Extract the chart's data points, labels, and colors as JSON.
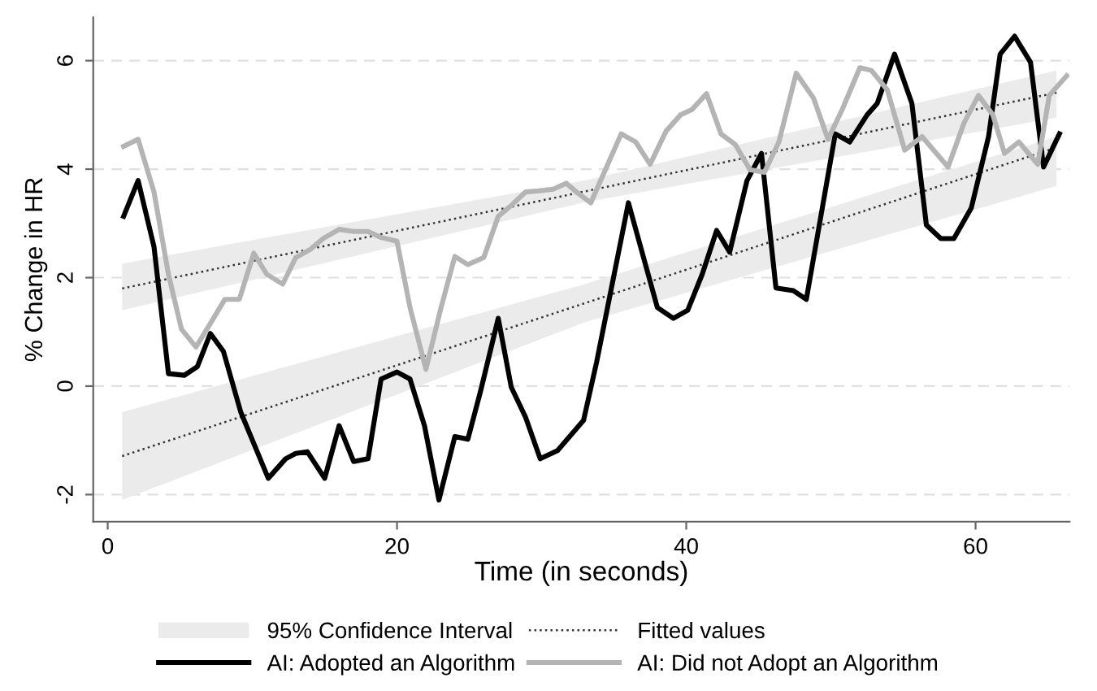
{
  "chart_data": {
    "type": "line",
    "xlabel": "Time (in seconds)",
    "ylabel": "% Change in HR",
    "xlim": [
      -1,
      66.5
    ],
    "ylim": [
      -2.5,
      6.8
    ],
    "xticks": [
      0,
      20,
      40,
      60
    ],
    "yticks": [
      -2,
      0,
      2,
      4,
      6
    ],
    "grid": "y",
    "legend": "bottom",
    "annotations": [
      "95% Confidence Interval"
    ],
    "series": [
      {
        "name": "Fitted values",
        "line_style": "dotted",
        "color": "#333333",
        "x": [
          1,
          33,
          65.6
        ],
        "values": [
          -1.29,
          1.53,
          4.4
        ],
        "lower": [
          -2.1,
          1.18,
          3.69
        ],
        "upper": [
          -0.48,
          1.88,
          4.6
        ]
      },
      {
        "line_style": "dotted",
        "color": "#333333",
        "x": [
          1,
          33,
          65.6
        ],
        "values": [
          1.8,
          3.59,
          5.41
        ],
        "lower": [
          1.4,
          3.39,
          4.95
        ],
        "upper": [
          2.26,
          3.79,
          5.82
        ]
      },
      {
        "name": "AI: Adopted an Algorithm",
        "color": "#000000",
        "x": [
          1.1,
          2.1,
          3.2,
          4.2,
          5.3,
          6.2,
          7.1,
          8.0,
          9.2,
          11.1,
          12.3,
          13.0,
          13.8,
          15.0,
          16.0,
          17.0,
          18.0,
          18.9,
          20.0,
          20.9,
          21.9,
          22.9,
          24.0,
          24.9,
          25.8,
          27.0,
          27.9,
          28.9,
          29.9,
          31.1,
          32.9,
          33.8,
          36.0,
          38.0,
          39.1,
          40.1,
          41.1,
          42.1,
          43.0,
          44.2,
          45.2,
          46.2,
          47.4,
          48.3,
          50.3,
          51.3,
          52.5,
          53.2,
          54.4,
          55.6,
          56.6,
          57.6,
          58.5,
          59.7,
          60.9,
          61.7,
          62.7,
          63.8,
          64.7,
          65.8
        ],
        "values": [
          3.13,
          3.79,
          2.57,
          0.23,
          0.2,
          0.36,
          0.97,
          0.64,
          -0.48,
          -1.7,
          -1.34,
          -1.24,
          -1.21,
          -1.7,
          -0.73,
          -1.39,
          -1.34,
          0.13,
          0.26,
          0.13,
          -0.73,
          -2.1,
          -0.93,
          -0.98,
          -0.07,
          1.25,
          -0.02,
          -0.58,
          -1.34,
          -1.19,
          -0.63,
          0.44,
          3.38,
          1.45,
          1.25,
          1.4,
          2.06,
          2.87,
          2.47,
          3.79,
          4.29,
          1.81,
          1.76,
          1.6,
          4.65,
          4.5,
          5.0,
          5.21,
          6.12,
          5.21,
          2.97,
          2.72,
          2.72,
          3.28,
          4.6,
          6.12,
          6.45,
          5.97,
          4.04,
          4.65
        ]
      },
      {
        "name": "AI: Did not Adopt an Algorithm",
        "color": "#b4b4b4",
        "x": [
          1.1,
          2.1,
          3.2,
          4.2,
          5.1,
          6.1,
          7.2,
          8.1,
          9.1,
          10.1,
          11.0,
          12.1,
          13.0,
          14.0,
          14.9,
          16.0,
          17.0,
          18.0,
          18.9,
          20.0,
          20.9,
          22.0,
          23.0,
          24.0,
          24.9,
          26.0,
          27.0,
          27.9,
          28.9,
          29.8,
          30.8,
          31.7,
          32.4,
          33.4,
          35.5,
          36.5,
          37.5,
          38.6,
          39.6,
          40.4,
          41.4,
          42.4,
          43.4,
          44.4,
          45.4,
          46.4,
          47.6,
          48.8,
          49.8,
          50.8,
          52.0,
          52.8,
          53.9,
          55.1,
          56.3,
          58.1,
          59.2,
          60.2,
          61.2,
          62.0,
          63.0,
          64.3,
          65.1,
          66.3
        ],
        "values": [
          4.42,
          4.55,
          3.58,
          2.06,
          1.05,
          0.72,
          1.2,
          1.6,
          1.6,
          2.45,
          2.06,
          1.88,
          2.37,
          2.52,
          2.72,
          2.89,
          2.85,
          2.85,
          2.74,
          2.67,
          1.45,
          0.31,
          1.4,
          2.39,
          2.24,
          2.37,
          3.13,
          3.33,
          3.58,
          3.6,
          3.63,
          3.74,
          3.58,
          3.38,
          4.65,
          4.5,
          4.09,
          4.7,
          5.0,
          5.1,
          5.39,
          4.65,
          4.45,
          3.99,
          3.94,
          4.5,
          5.77,
          5.31,
          4.55,
          5.11,
          5.87,
          5.82,
          5.46,
          4.35,
          4.6,
          4.04,
          4.85,
          5.36,
          5.0,
          4.29,
          4.5,
          4.09,
          5.36,
          5.72
        ]
      }
    ]
  }
}
